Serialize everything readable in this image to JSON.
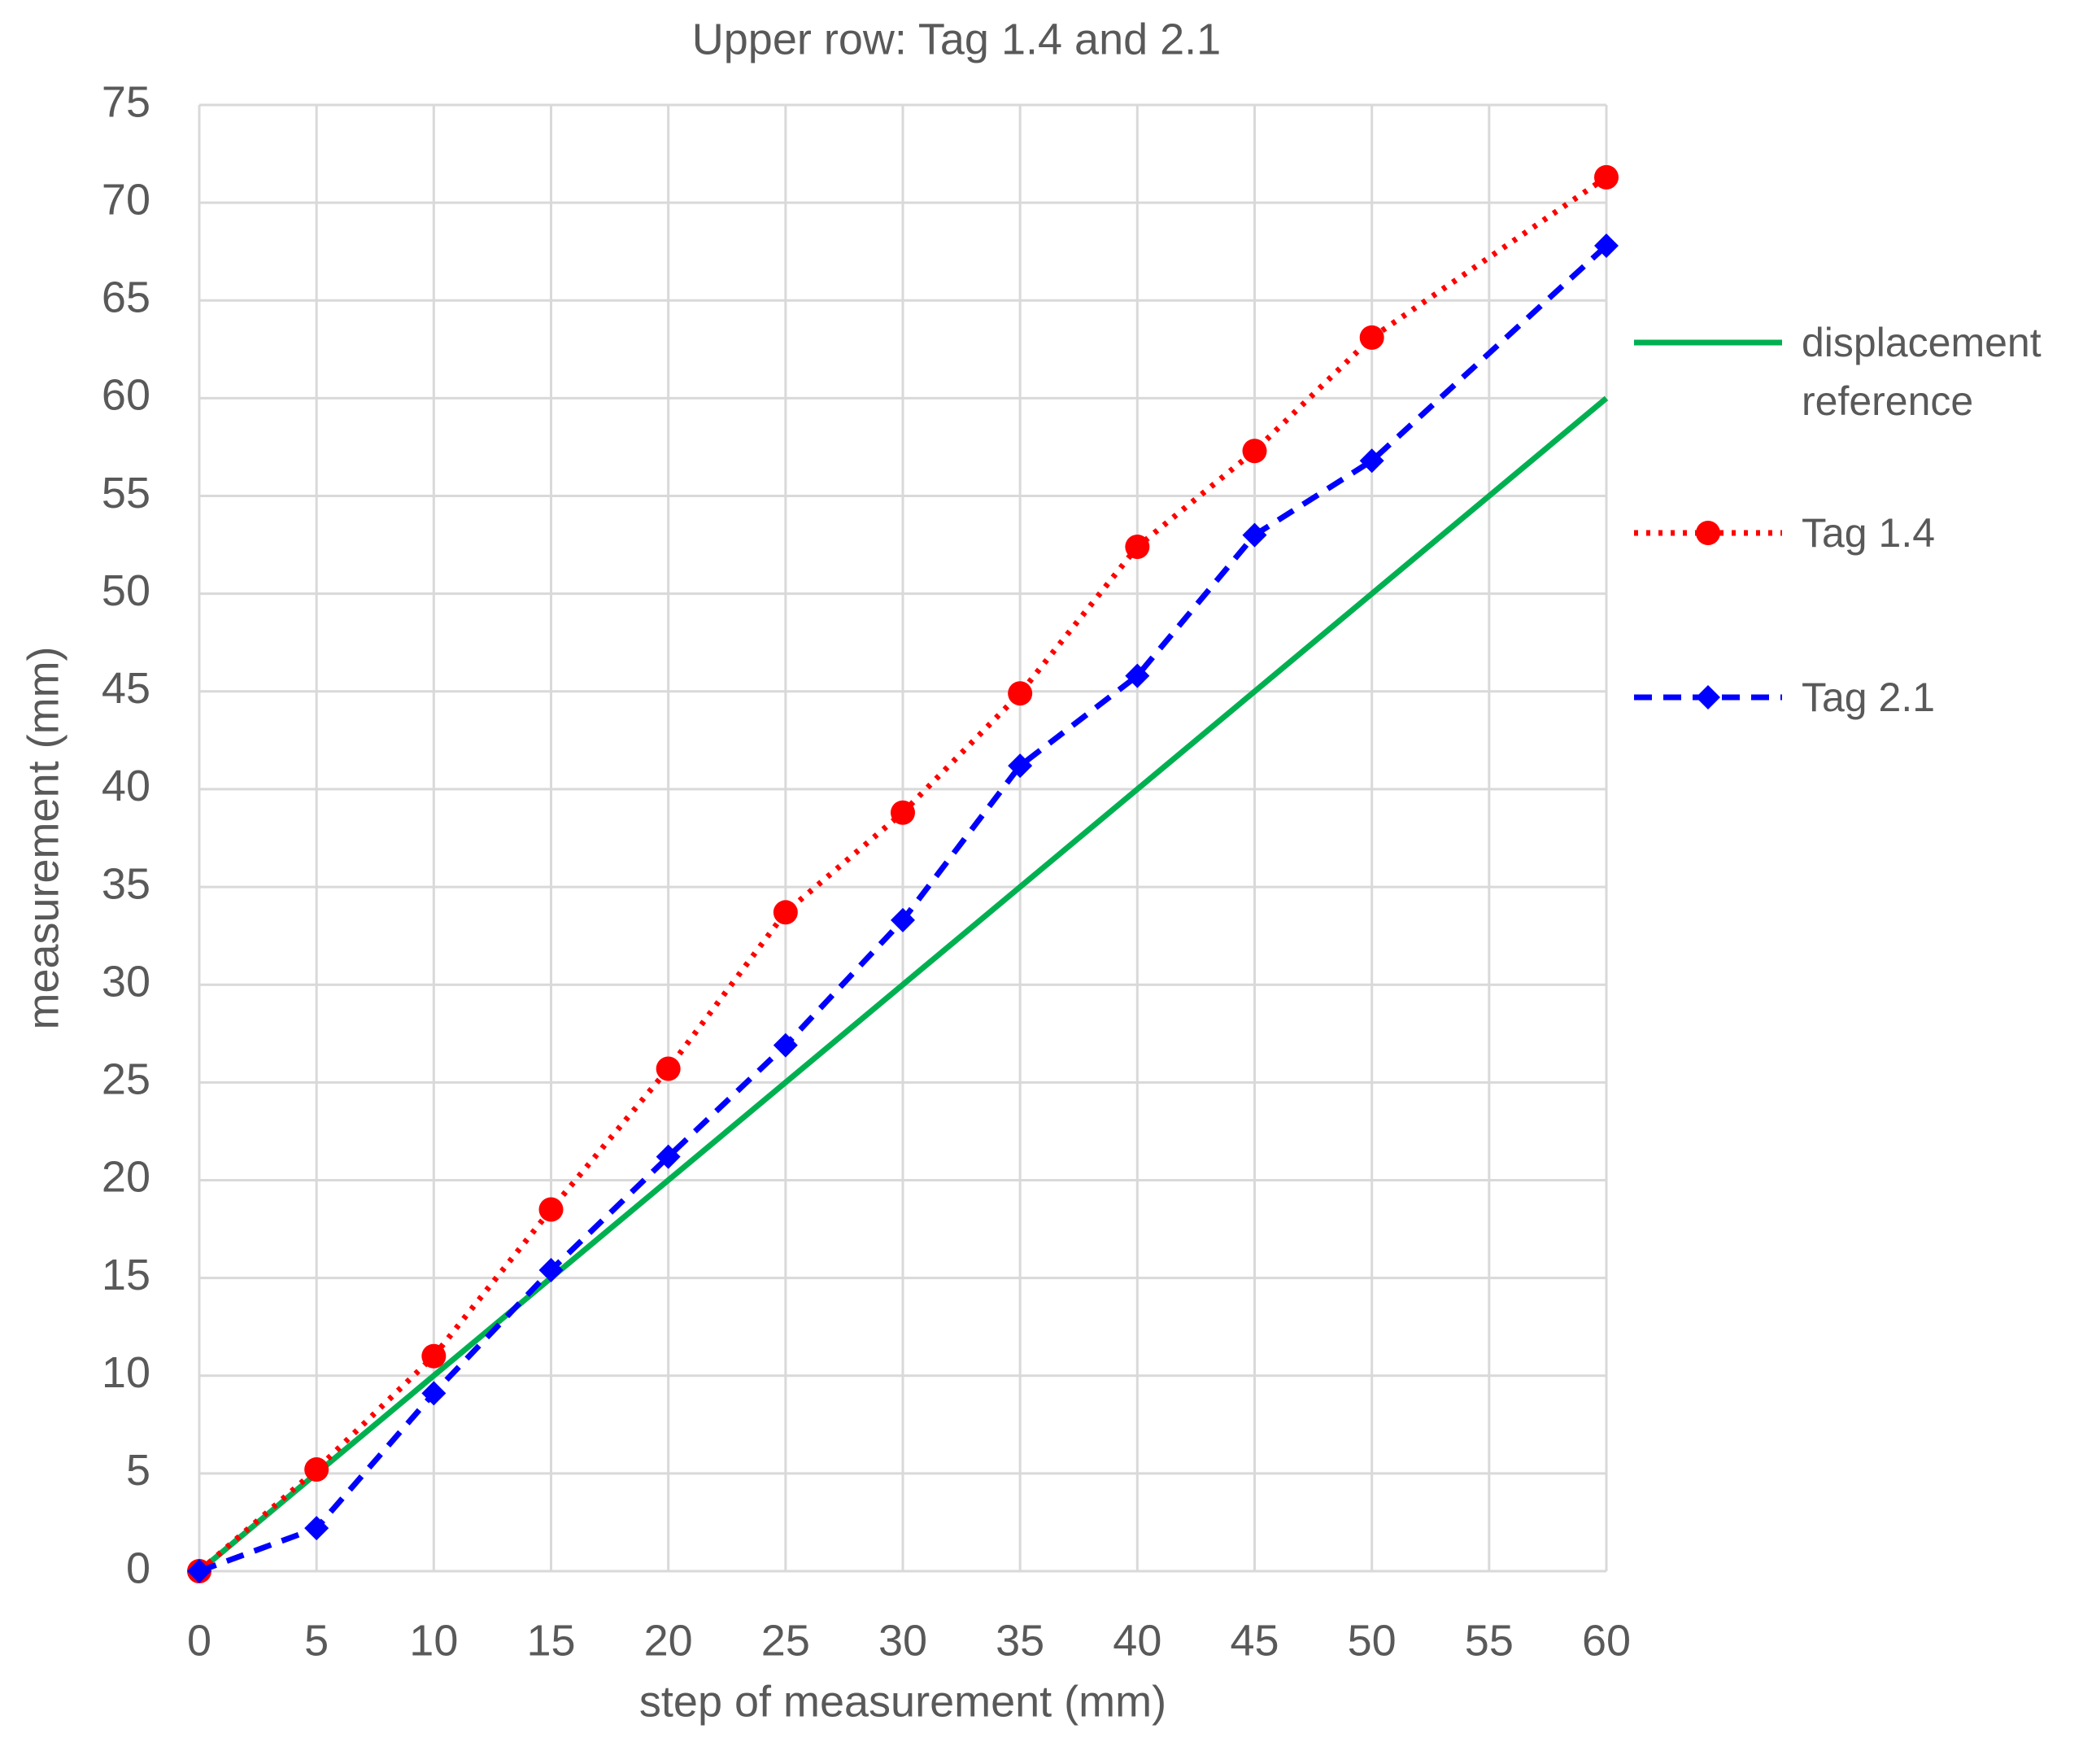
{
  "chart_data": {
    "type": "line",
    "title": "Upper row: Tag 1.4 and 2.1",
    "xlabel": "step of measurement (mm)",
    "ylabel": "measurement (mm)",
    "x": [
      0,
      5,
      10,
      15,
      20,
      25,
      30,
      35,
      40,
      45,
      50,
      60
    ],
    "series": [
      {
        "name": "displacement reference",
        "color": "#00b050",
        "line_style": "solid",
        "marker": "none",
        "values": [
          0,
          5,
          10,
          15,
          20,
          25,
          30,
          35,
          40,
          45,
          50,
          60
        ]
      },
      {
        "name": "Tag 1.4",
        "color": "#ff0000",
        "line_style": "dotted",
        "marker": "circle",
        "values": [
          0,
          5.2,
          11,
          18.5,
          25.7,
          33.7,
          38.8,
          44.9,
          52.4,
          57.3,
          63.1,
          71.3
        ]
      },
      {
        "name": "Tag 2.1",
        "color": "#0000ff",
        "line_style": "dashed",
        "marker": "diamond",
        "values": [
          0,
          2.2,
          9.1,
          15.4,
          21.2,
          26.9,
          33.3,
          41.2,
          45.8,
          53,
          56.8,
          67.8
        ]
      }
    ],
    "xlim": [
      0,
      60
    ],
    "xticks": [
      0,
      5,
      10,
      15,
      20,
      25,
      30,
      35,
      40,
      45,
      50,
      55,
      60
    ],
    "ylim": [
      0,
      75
    ],
    "yticks": [
      0,
      5,
      10,
      15,
      20,
      25,
      30,
      35,
      40,
      45,
      50,
      55,
      60,
      65,
      70,
      75
    ],
    "grid": true,
    "legend": "right"
  }
}
